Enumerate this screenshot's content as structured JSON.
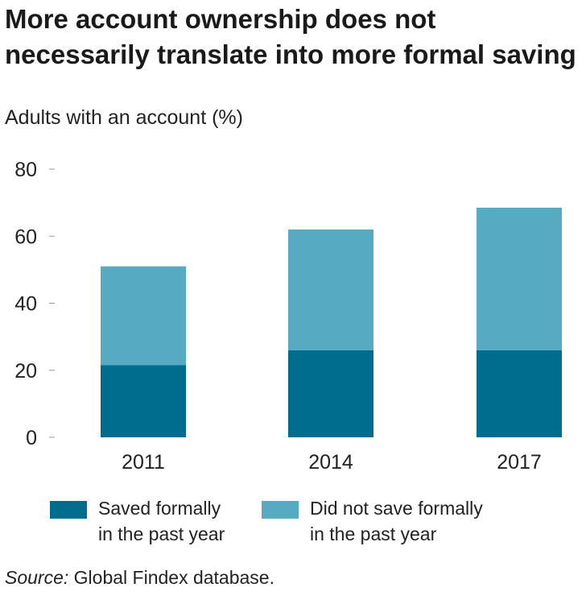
{
  "chart_data": {
    "type": "bar",
    "stacked": true,
    "title": "More account ownership does not necessarily translate into more formal saving",
    "subtitle": "Adults with an account (%)",
    "categories": [
      "2011",
      "2014",
      "2017"
    ],
    "series": [
      {
        "name": "Saved formally in the past year",
        "legend_line1": "Saved formally",
        "legend_line2": "in the past year",
        "color": "#006d8f",
        "values": [
          21.5,
          26,
          26
        ]
      },
      {
        "name": "Did not save formally in the past year",
        "legend_line1": "Did not save formally",
        "legend_line2": "in the past year",
        "color": "#56aac2",
        "values": [
          29.5,
          36,
          42.5
        ]
      }
    ],
    "ylim": [
      0,
      80
    ],
    "yticks": [
      "0",
      "20",
      "40",
      "60",
      "80"
    ],
    "grid": false,
    "legend_position": "bottom",
    "source_label": "Source:",
    "source_text": " Global Findex database."
  }
}
